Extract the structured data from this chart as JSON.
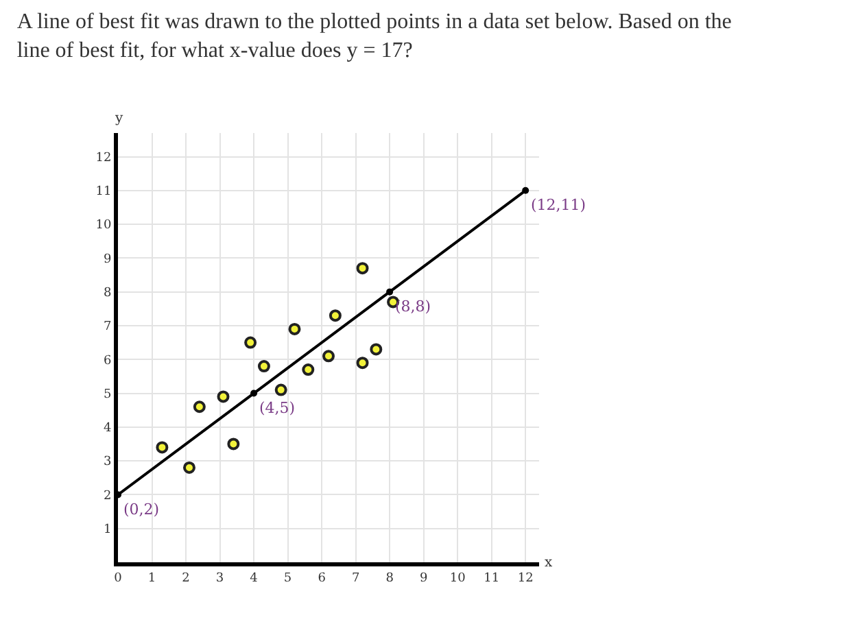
{
  "chart_data": {
    "type": "scatter",
    "title": "A line of best fit was drawn to the plotted points in a data set below. Based on the line of best fit, for what x-value does y = 17?",
    "xlabel": "x",
    "ylabel": "y",
    "series": [
      {
        "color": "#f2f23a",
        "marker": "circle",
        "x": [
          1.3,
          2.1,
          2.4,
          3.1,
          3.4,
          3.9,
          4.3,
          4.8,
          5.2,
          5.6,
          6.2,
          6.4,
          7.2,
          7.2,
          7.6,
          8.1
        ],
        "values": [
          3.4,
          2.8,
          4.6,
          4.9,
          3.5,
          6.5,
          5.8,
          5.1,
          6.9,
          5.7,
          6.1,
          7.3,
          8.7,
          5.9,
          6.3,
          7.7
        ]
      },
      {
        "type": "line",
        "color": "#000000",
        "marker": "circle",
        "line_style": "solid",
        "x": [
          0,
          4,
          8,
          12
        ],
        "values": [
          2,
          5,
          8,
          11
        ]
      }
    ],
    "annotations": [
      {
        "text": "(0,2)",
        "x": 0,
        "y": 2
      },
      {
        "text": "(4,5)",
        "x": 4,
        "y": 5
      },
      {
        "text": "(8,8)",
        "x": 8,
        "y": 8
      },
      {
        "text": "(12,11)",
        "x": 12,
        "y": 11
      }
    ],
    "xlim": [
      0,
      12.4
    ],
    "ylim": [
      0,
      12.7
    ],
    "xticks": [
      {
        "value": 0,
        "label": "0"
      },
      1,
      2,
      3,
      4,
      5,
      6,
      7,
      8,
      9,
      10,
      11,
      12
    ],
    "yticks": [
      1,
      2,
      3,
      4,
      5,
      6,
      7,
      8,
      9,
      10,
      11,
      12
    ],
    "grid": true
  }
}
